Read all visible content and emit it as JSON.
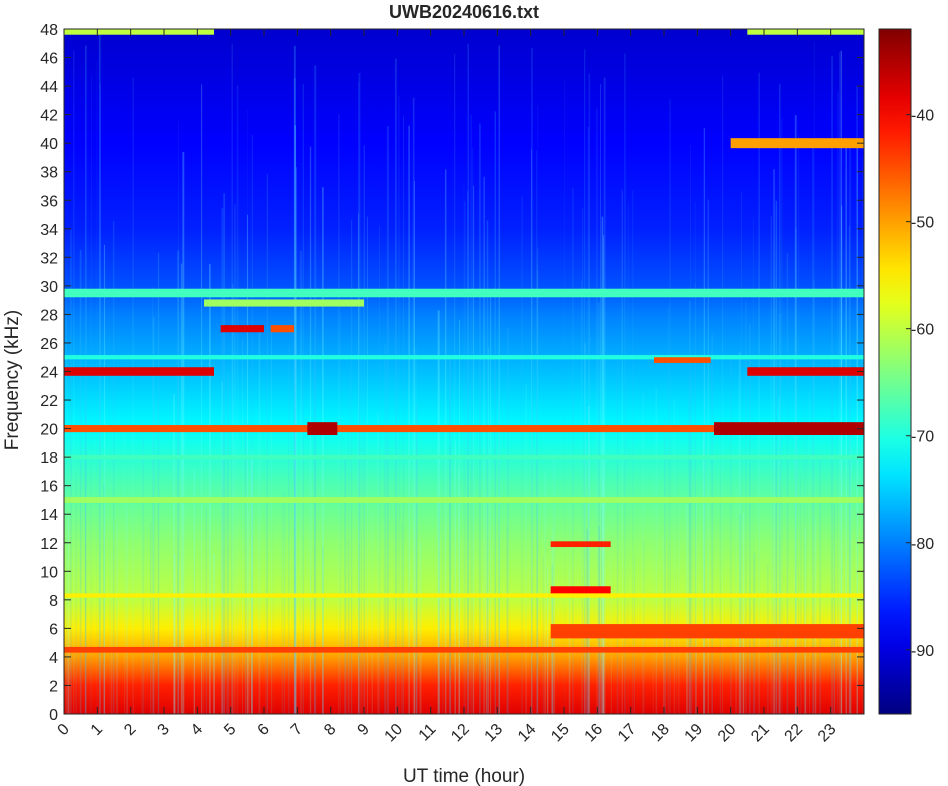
{
  "chart_data": {
    "type": "heatmap",
    "title": "UWB20240616.txt",
    "xlabel": "UT time (hour)",
    "ylabel": "Frequency (kHz)",
    "xlim": [
      0,
      24
    ],
    "ylim": [
      0,
      48
    ],
    "x_ticks": [
      "0",
      "1",
      "2",
      "3",
      "4",
      "5",
      "6",
      "7",
      "8",
      "9",
      "10",
      "11",
      "12",
      "13",
      "14",
      "15",
      "16",
      "17",
      "18",
      "19",
      "20",
      "21",
      "22",
      "23"
    ],
    "y_ticks": [
      "0",
      "2",
      "4",
      "6",
      "8",
      "10",
      "12",
      "14",
      "16",
      "18",
      "20",
      "22",
      "24",
      "26",
      "28",
      "30",
      "32",
      "34",
      "36",
      "38",
      "40",
      "42",
      "44",
      "46",
      "48"
    ],
    "colorbar": {
      "colormap": "jet",
      "clim": [
        -96,
        -32
      ],
      "ticks": [
        "-90",
        "-80",
        "-70",
        "-60",
        "-50",
        "-40"
      ],
      "tick_values": [
        -90,
        -80,
        -70,
        -60,
        -50,
        -40
      ]
    },
    "background_gradient_db": [
      {
        "freq_khz": 0,
        "db": -38
      },
      {
        "freq_khz": 2,
        "db": -42
      },
      {
        "freq_khz": 4,
        "db": -50
      },
      {
        "freq_khz": 6,
        "db": -55
      },
      {
        "freq_khz": 8,
        "db": -60
      },
      {
        "freq_khz": 12,
        "db": -63
      },
      {
        "freq_khz": 16,
        "db": -67
      },
      {
        "freq_khz": 20,
        "db": -72
      },
      {
        "freq_khz": 24,
        "db": -76
      },
      {
        "freq_khz": 28,
        "db": -80
      },
      {
        "freq_khz": 30,
        "db": -83
      },
      {
        "freq_khz": 34,
        "db": -86
      },
      {
        "freq_khz": 40,
        "db": -88
      },
      {
        "freq_khz": 48,
        "db": -91
      }
    ],
    "bands": [
      {
        "freq_khz": 47.8,
        "t_start": 0.0,
        "t_end": 4.5,
        "db": -60,
        "width_khz": 0.4
      },
      {
        "freq_khz": 47.8,
        "t_start": 20.5,
        "t_end": 24.0,
        "db": -60,
        "width_khz": 0.4
      },
      {
        "freq_khz": 40.0,
        "t_start": 20.0,
        "t_end": 24.0,
        "db": -50,
        "width_khz": 0.7
      },
      {
        "freq_khz": 29.5,
        "t_start": 0.0,
        "t_end": 24.0,
        "db": -68,
        "width_khz": 0.6
      },
      {
        "freq_khz": 28.8,
        "t_start": 4.2,
        "t_end": 9.0,
        "db": -62,
        "width_khz": 0.5
      },
      {
        "freq_khz": 27.0,
        "t_start": 4.7,
        "t_end": 6.0,
        "db": -38,
        "width_khz": 0.5
      },
      {
        "freq_khz": 27.0,
        "t_start": 6.2,
        "t_end": 6.9,
        "db": -45,
        "width_khz": 0.5
      },
      {
        "freq_khz": 25.0,
        "t_start": 0.0,
        "t_end": 24.0,
        "db": -70,
        "width_khz": 0.3
      },
      {
        "freq_khz": 24.8,
        "t_start": 17.7,
        "t_end": 19.4,
        "db": -45,
        "width_khz": 0.4
      },
      {
        "freq_khz": 24.0,
        "t_start": 0.0,
        "t_end": 4.5,
        "db": -38,
        "width_khz": 0.6
      },
      {
        "freq_khz": 24.0,
        "t_start": 20.5,
        "t_end": 24.0,
        "db": -38,
        "width_khz": 0.6
      },
      {
        "freq_khz": 20.0,
        "t_start": 0.0,
        "t_end": 24.0,
        "db": -45,
        "width_khz": 0.5
      },
      {
        "freq_khz": 20.0,
        "t_start": 7.3,
        "t_end": 8.2,
        "db": -35,
        "width_khz": 0.9
      },
      {
        "freq_khz": 20.0,
        "t_start": 19.5,
        "t_end": 24.0,
        "db": -35,
        "width_khz": 0.9
      },
      {
        "freq_khz": 18.0,
        "t_start": 0.0,
        "t_end": 24.0,
        "db": -68,
        "width_khz": 0.3
      },
      {
        "freq_khz": 15.0,
        "t_start": 0.0,
        "t_end": 24.0,
        "db": -62,
        "width_khz": 0.4
      },
      {
        "freq_khz": 11.9,
        "t_start": 14.6,
        "t_end": 16.4,
        "db": -42,
        "width_khz": 0.4
      },
      {
        "freq_khz": 8.7,
        "t_start": 14.6,
        "t_end": 16.4,
        "db": -40,
        "width_khz": 0.5
      },
      {
        "freq_khz": 8.3,
        "t_start": 0.0,
        "t_end": 24.0,
        "db": -55,
        "width_khz": 0.3
      },
      {
        "freq_khz": 5.8,
        "t_start": 14.6,
        "t_end": 24.0,
        "db": -44,
        "width_khz": 1.0
      },
      {
        "freq_khz": 4.5,
        "t_start": 0.0,
        "t_end": 24.0,
        "db": -44,
        "width_khz": 0.4
      }
    ]
  }
}
